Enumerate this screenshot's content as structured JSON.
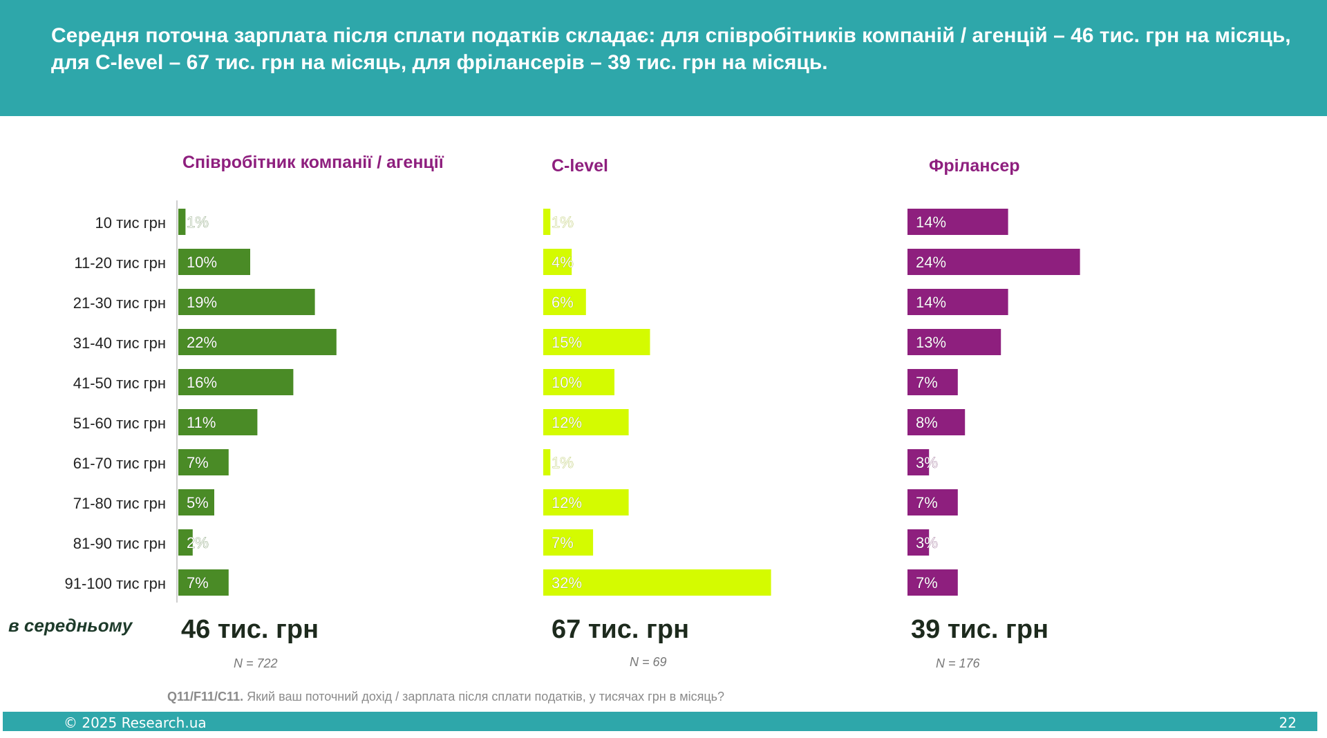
{
  "headline": "Середня поточна зарплата після сплати податків складає: для співробітників компаній / агенцій – 46 тис. грн на місяць, для C-level – 67 тис. грн на місяць, для фрілансерів – 39 тис. грн на місяць.",
  "average_label": "в середньому",
  "question": {
    "code": "Q11/F11/C11.",
    "text": "Який ваш поточний дохід / зарплата після сплати податків, у тисячах грн в місяць?"
  },
  "footer": {
    "copyright": "© 2025 Research.ua",
    "page": "22"
  },
  "colors": {
    "header": "#2ea7aa",
    "employee": "#4a8b26",
    "clevel": "#d4fb00",
    "freelancer": "#8e1f7e",
    "panel_title": "#8e1f7e"
  },
  "chart_data": {
    "type": "bar",
    "orientation": "horizontal",
    "categories": [
      "10 тис грн",
      "11-20 тис грн",
      "21-30 тис грн",
      "31-40 тис грн",
      "41-50 тис грн",
      "51-60 тис грн",
      "61-70 тис грн",
      "71-80 тис грн",
      "81-90 тис грн",
      "91-100 тис грн"
    ],
    "unit": "%",
    "series": [
      {
        "name": "Співробітник компанії / агенції",
        "values": [
          1,
          10,
          19,
          22,
          16,
          11,
          7,
          5,
          2,
          7
        ],
        "average": "46 тис. грн",
        "n": "N = 722"
      },
      {
        "name": "C-level",
        "values": [
          1,
          4,
          6,
          15,
          10,
          12,
          1,
          12,
          7,
          32
        ],
        "average": "67 тис. грн",
        "n": "N = 69"
      },
      {
        "name": "Фрілансер",
        "values": [
          14,
          24,
          14,
          13,
          7,
          8,
          3,
          7,
          3,
          7
        ],
        "average": "39 тис. грн",
        "n": "N =  176"
      }
    ]
  }
}
